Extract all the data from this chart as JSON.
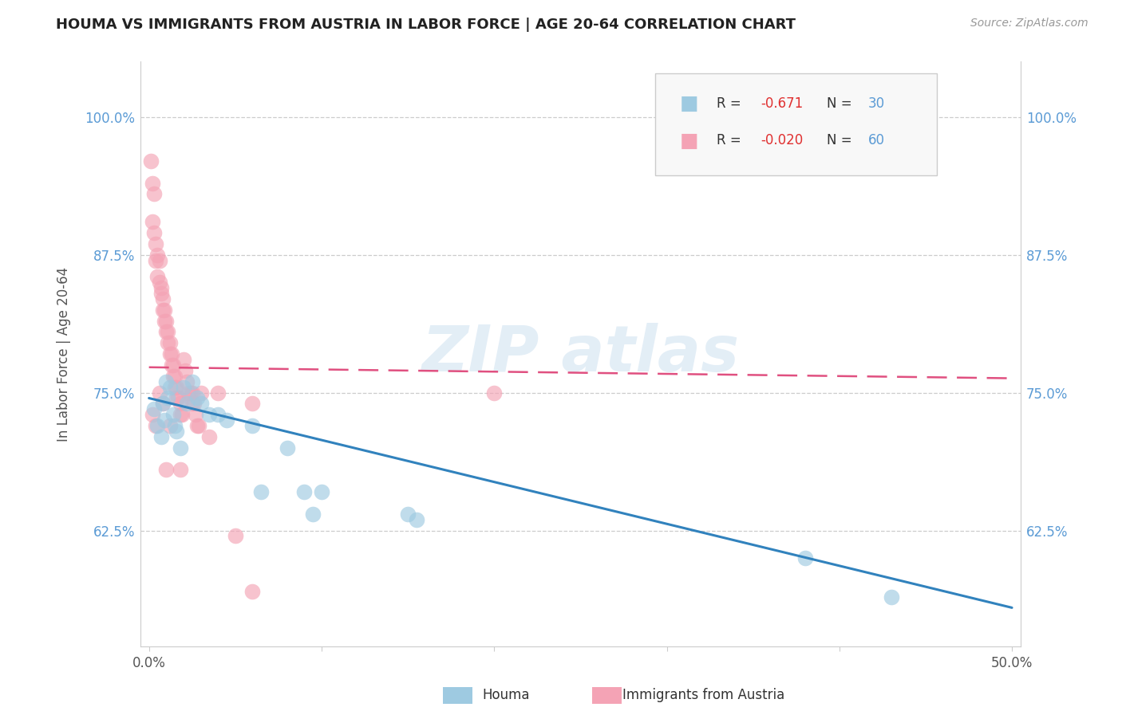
{
  "title": "HOUMA VS IMMIGRANTS FROM AUSTRIA IN LABOR FORCE | AGE 20-64 CORRELATION CHART",
  "source": "Source: ZipAtlas.com",
  "ylabel": "In Labor Force | Age 20-64",
  "xlim": [
    -0.005,
    0.505
  ],
  "ylim": [
    0.52,
    1.05
  ],
  "xticks": [
    0.0,
    0.1,
    0.2,
    0.3,
    0.4,
    0.5
  ],
  "xticklabels": [
    "0.0%",
    "",
    "",
    "",
    "",
    "50.0%"
  ],
  "yticks": [
    0.625,
    0.75,
    0.875,
    1.0
  ],
  "yticklabels": [
    "62.5%",
    "75.0%",
    "87.5%",
    "100.0%"
  ],
  "legend_R1": "-0.671",
  "legend_N1": "30",
  "legend_R2": "-0.020",
  "legend_N2": "60",
  "blue_color": "#9ecae1",
  "pink_color": "#f4a3b5",
  "blue_line_color": "#3182bd",
  "pink_line_color": "#e05080",
  "blue_dots_x": [
    0.003,
    0.005,
    0.007,
    0.008,
    0.009,
    0.01,
    0.011,
    0.012,
    0.014,
    0.015,
    0.016,
    0.018,
    0.02,
    0.022,
    0.025,
    0.028,
    0.03,
    0.035,
    0.04,
    0.045,
    0.06,
    0.065,
    0.08,
    0.09,
    0.095,
    0.1,
    0.15,
    0.155,
    0.38,
    0.43
  ],
  "blue_dots_y": [
    0.735,
    0.72,
    0.71,
    0.74,
    0.725,
    0.76,
    0.745,
    0.755,
    0.73,
    0.72,
    0.715,
    0.7,
    0.755,
    0.74,
    0.76,
    0.745,
    0.74,
    0.73,
    0.73,
    0.725,
    0.72,
    0.66,
    0.7,
    0.66,
    0.64,
    0.66,
    0.64,
    0.635,
    0.6,
    0.565
  ],
  "pink_dots_x": [
    0.001,
    0.002,
    0.002,
    0.003,
    0.003,
    0.004,
    0.004,
    0.005,
    0.005,
    0.006,
    0.006,
    0.007,
    0.007,
    0.008,
    0.008,
    0.009,
    0.009,
    0.01,
    0.01,
    0.011,
    0.011,
    0.012,
    0.012,
    0.013,
    0.013,
    0.014,
    0.014,
    0.015,
    0.015,
    0.016,
    0.016,
    0.017,
    0.018,
    0.018,
    0.019,
    0.02,
    0.021,
    0.022,
    0.023,
    0.024,
    0.025,
    0.026,
    0.027,
    0.028,
    0.029,
    0.03,
    0.035,
    0.04,
    0.05,
    0.06,
    0.002,
    0.004,
    0.006,
    0.008,
    0.01,
    0.012,
    0.018,
    0.025,
    0.06,
    0.2
  ],
  "pink_dots_y": [
    0.96,
    0.94,
    0.905,
    0.93,
    0.895,
    0.885,
    0.87,
    0.875,
    0.855,
    0.87,
    0.85,
    0.845,
    0.84,
    0.835,
    0.825,
    0.825,
    0.815,
    0.815,
    0.805,
    0.805,
    0.795,
    0.795,
    0.785,
    0.785,
    0.775,
    0.775,
    0.765,
    0.765,
    0.755,
    0.755,
    0.745,
    0.745,
    0.74,
    0.73,
    0.73,
    0.78,
    0.77,
    0.76,
    0.75,
    0.75,
    0.74,
    0.74,
    0.73,
    0.72,
    0.72,
    0.75,
    0.71,
    0.75,
    0.62,
    0.57,
    0.73,
    0.72,
    0.75,
    0.74,
    0.68,
    0.72,
    0.68,
    0.75,
    0.74,
    0.75
  ],
  "blue_trendline_x": [
    0.0,
    0.5
  ],
  "blue_trendline_y": [
    0.745,
    0.555
  ],
  "pink_trendline_x": [
    0.0,
    0.5
  ],
  "pink_trendline_y": [
    0.773,
    0.763
  ]
}
